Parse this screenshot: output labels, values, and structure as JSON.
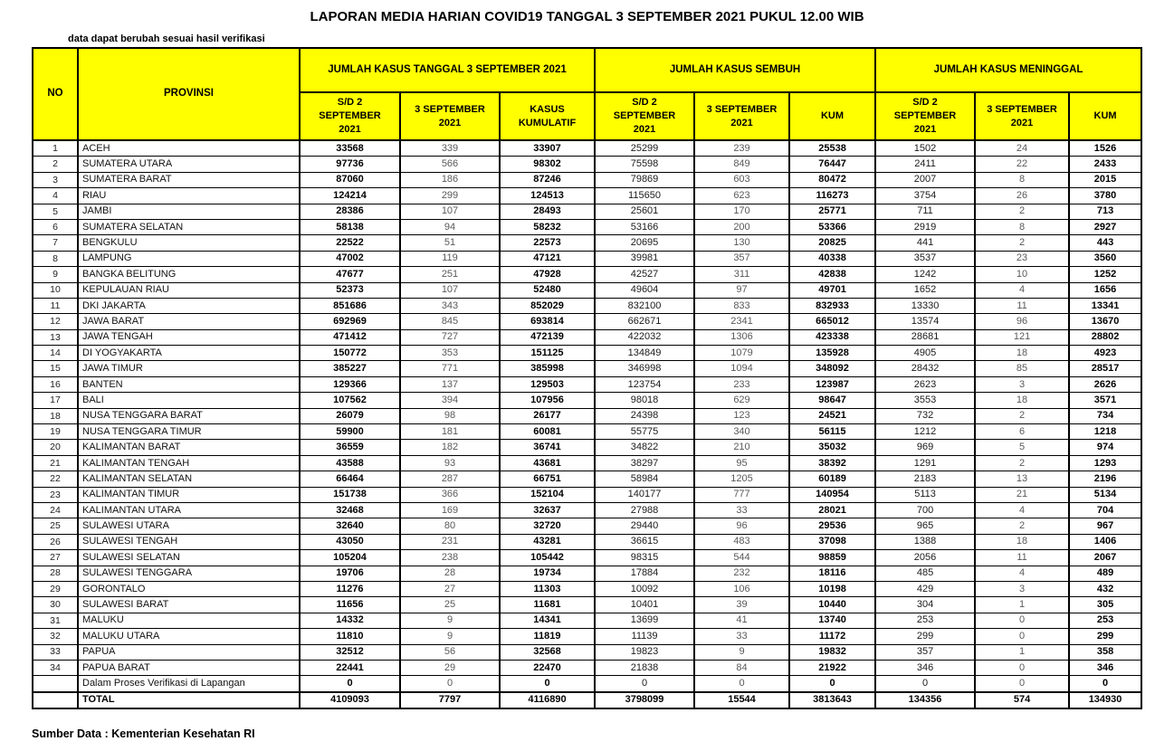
{
  "title": "LAPORAN MEDIA HARIAN COVID19 TANGGAL 3 SEPTEMBER 2021 PUKUL 12.00 WIB",
  "note": "data dapat berubah sesuai hasil verifikasi",
  "source": "Sumber Data : Kementerian Kesehatan RI",
  "colors": {
    "header_bg": "#ffff00",
    "border": "#000000",
    "muted_number_text": "#595959"
  },
  "table": {
    "col_no": "NO",
    "col_provinsi": "PROVINSI",
    "groups": [
      {
        "label": "JUMLAH KASUS TANGGAL 3 SEPTEMBER 2021",
        "cols": [
          "S/D 2\nSEPTEMBER\n2021",
          "3 SEPTEMBER\n2021",
          "KASUS\nKUMULATIF"
        ]
      },
      {
        "label": "JUMLAH KASUS SEMBUH",
        "cols": [
          "S/D 2\nSEPTEMBER\n2021",
          "3 SEPTEMBER\n2021",
          "KUM"
        ]
      },
      {
        "label": "JUMLAH KASUS MENINGGAL",
        "cols": [
          "S/D 2\nSEPTEMBER\n2021",
          "3 SEPTEMBER\n2021",
          "KUM"
        ]
      }
    ],
    "rows": [
      [
        1,
        "ACEH",
        33568,
        339,
        33907,
        25299,
        239,
        25538,
        1502,
        24,
        1526
      ],
      [
        2,
        "SUMATERA UTARA",
        97736,
        566,
        98302,
        75598,
        849,
        76447,
        2411,
        22,
        2433
      ],
      [
        3,
        "SUMATERA BARAT",
        87060,
        186,
        87246,
        79869,
        603,
        80472,
        2007,
        8,
        2015
      ],
      [
        4,
        "RIAU",
        124214,
        299,
        124513,
        115650,
        623,
        116273,
        3754,
        26,
        3780
      ],
      [
        5,
        "JAMBI",
        28386,
        107,
        28493,
        25601,
        170,
        25771,
        711,
        2,
        713
      ],
      [
        6,
        "SUMATERA SELATAN",
        58138,
        94,
        58232,
        53166,
        200,
        53366,
        2919,
        8,
        2927
      ],
      [
        7,
        "BENGKULU",
        22522,
        51,
        22573,
        20695,
        130,
        20825,
        441,
        2,
        443
      ],
      [
        8,
        "LAMPUNG",
        47002,
        119,
        47121,
        39981,
        357,
        40338,
        3537,
        23,
        3560
      ],
      [
        9,
        "BANGKA BELITUNG",
        47677,
        251,
        47928,
        42527,
        311,
        42838,
        1242,
        10,
        1252
      ],
      [
        10,
        "KEPULAUAN RIAU",
        52373,
        107,
        52480,
        49604,
        97,
        49701,
        1652,
        4,
        1656
      ],
      [
        11,
        "DKI JAKARTA",
        851686,
        343,
        852029,
        832100,
        833,
        832933,
        13330,
        11,
        13341
      ],
      [
        12,
        "JAWA BARAT",
        692969,
        845,
        693814,
        662671,
        2341,
        665012,
        13574,
        96,
        13670
      ],
      [
        13,
        "JAWA TENGAH",
        471412,
        727,
        472139,
        422032,
        1306,
        423338,
        28681,
        121,
        28802
      ],
      [
        14,
        "DI YOGYAKARTA",
        150772,
        353,
        151125,
        134849,
        1079,
        135928,
        4905,
        18,
        4923
      ],
      [
        15,
        "JAWA TIMUR",
        385227,
        771,
        385998,
        346998,
        1094,
        348092,
        28432,
        85,
        28517
      ],
      [
        16,
        "BANTEN",
        129366,
        137,
        129503,
        123754,
        233,
        123987,
        2623,
        3,
        2626
      ],
      [
        17,
        "BALI",
        107562,
        394,
        107956,
        98018,
        629,
        98647,
        3553,
        18,
        3571
      ],
      [
        18,
        "NUSA TENGGARA BARAT",
        26079,
        98,
        26177,
        24398,
        123,
        24521,
        732,
        2,
        734
      ],
      [
        19,
        "NUSA TENGGARA TIMUR",
        59900,
        181,
        60081,
        55775,
        340,
        56115,
        1212,
        6,
        1218
      ],
      [
        20,
        "KALIMANTAN BARAT",
        36559,
        182,
        36741,
        34822,
        210,
        35032,
        969,
        5,
        974
      ],
      [
        21,
        "KALIMANTAN TENGAH",
        43588,
        93,
        43681,
        38297,
        95,
        38392,
        1291,
        2,
        1293
      ],
      [
        22,
        "KALIMANTAN SELATAN",
        66464,
        287,
        66751,
        58984,
        1205,
        60189,
        2183,
        13,
        2196
      ],
      [
        23,
        "KALIMANTAN TIMUR",
        151738,
        366,
        152104,
        140177,
        777,
        140954,
        5113,
        21,
        5134
      ],
      [
        24,
        "KALIMANTAN UTARA",
        32468,
        169,
        32637,
        27988,
        33,
        28021,
        700,
        4,
        704
      ],
      [
        25,
        "SULAWESI UTARA",
        32640,
        80,
        32720,
        29440,
        96,
        29536,
        965,
        2,
        967
      ],
      [
        26,
        "SULAWESI TENGAH",
        43050,
        231,
        43281,
        36615,
        483,
        37098,
        1388,
        18,
        1406
      ],
      [
        27,
        "SULAWESI SELATAN",
        105204,
        238,
        105442,
        98315,
        544,
        98859,
        2056,
        11,
        2067
      ],
      [
        28,
        "SULAWESI TENGGARA",
        19706,
        28,
        19734,
        17884,
        232,
        18116,
        485,
        4,
        489
      ],
      [
        29,
        "GORONTALO",
        11276,
        27,
        11303,
        10092,
        106,
        10198,
        429,
        3,
        432
      ],
      [
        30,
        "SULAWESI BARAT",
        11656,
        25,
        11681,
        10401,
        39,
        10440,
        304,
        1,
        305
      ],
      [
        31,
        "MALUKU",
        14332,
        9,
        14341,
        13699,
        41,
        13740,
        253,
        0,
        253
      ],
      [
        32,
        "MALUKU UTARA",
        11810,
        9,
        11819,
        11139,
        33,
        11172,
        299,
        0,
        299
      ],
      [
        33,
        "PAPUA",
        32512,
        56,
        32568,
        19823,
        9,
        19832,
        357,
        1,
        358
      ],
      [
        34,
        "PAPUA BARAT",
        22441,
        29,
        22470,
        21838,
        84,
        21922,
        346,
        0,
        346
      ]
    ],
    "verification_row": {
      "label": "Dalam Proses Verifikasi di Lapangan",
      "values": [
        0,
        0,
        0,
        0,
        0,
        0,
        0,
        0,
        0
      ]
    },
    "total_row": {
      "label": "TOTAL",
      "values": [
        4109093,
        7797,
        4116890,
        3798099,
        15544,
        3813643,
        134356,
        574,
        134930
      ]
    }
  }
}
